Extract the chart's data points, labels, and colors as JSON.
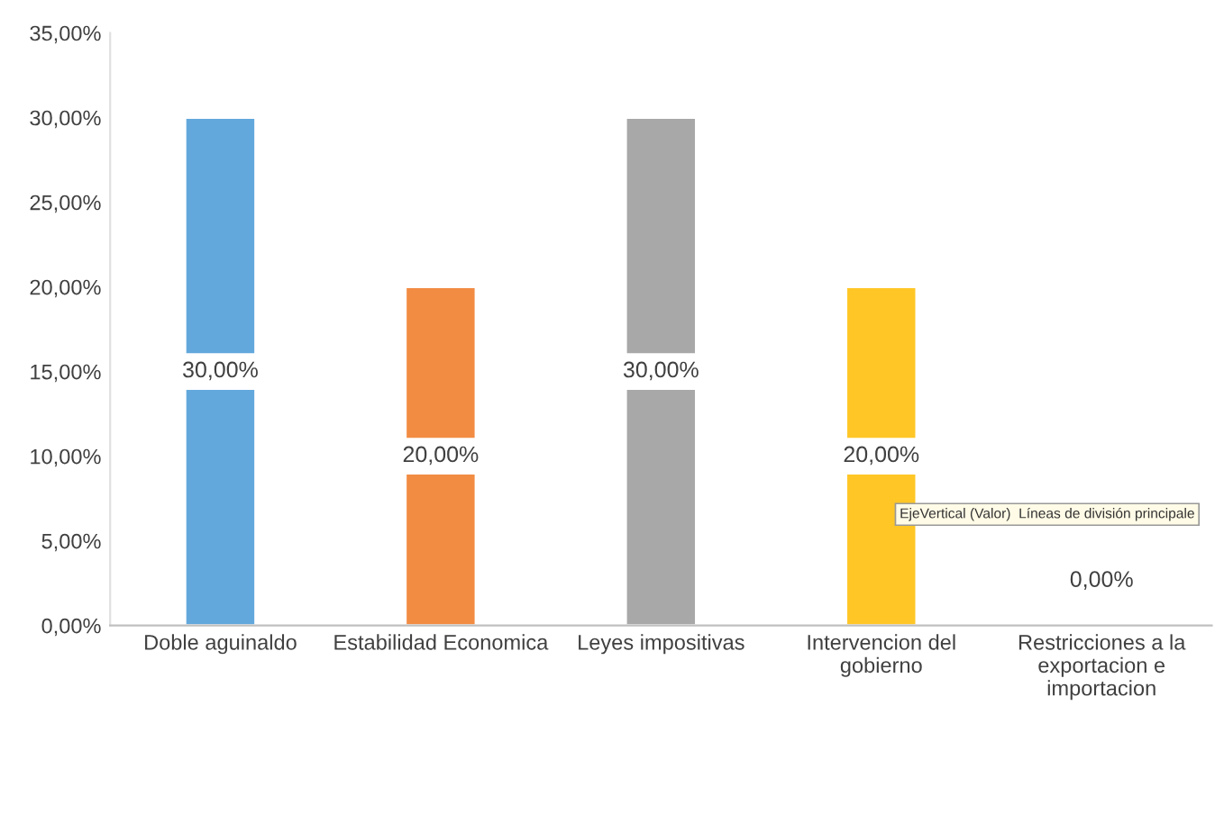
{
  "chart_data": {
    "type": "bar",
    "categories": [
      "Doble aguinaldo",
      "Estabilidad Economica",
      "Leyes impositivas",
      "Intervencion del\ngobierno",
      "Restricciones a la\nexportacion e\nimportacion"
    ],
    "values": [
      30,
      20,
      30,
      20,
      0
    ],
    "colors": [
      "#62a8dc",
      "#f28c43",
      "#a8a8a8",
      "#ffc626",
      null
    ],
    "value_labels": [
      "30,00%",
      "20,00%",
      "30,00%",
      "20,00%",
      "0,00%"
    ],
    "ylim": [
      0,
      35
    ],
    "yticks": [
      {
        "value": 0,
        "label": "0,00%"
      },
      {
        "value": 5,
        "label": "5,00%"
      },
      {
        "value": 10,
        "label": "10,00%"
      },
      {
        "value": 15,
        "label": "15,00%"
      },
      {
        "value": 20,
        "label": "20,00%"
      },
      {
        "value": 25,
        "label": "25,00%"
      },
      {
        "value": 30,
        "label": "30,00%"
      },
      {
        "value": 35,
        "label": "35,00%"
      }
    ],
    "grid": false,
    "annotations": [
      "EjeVertical (Valor)  Líneas de división principale"
    ]
  }
}
